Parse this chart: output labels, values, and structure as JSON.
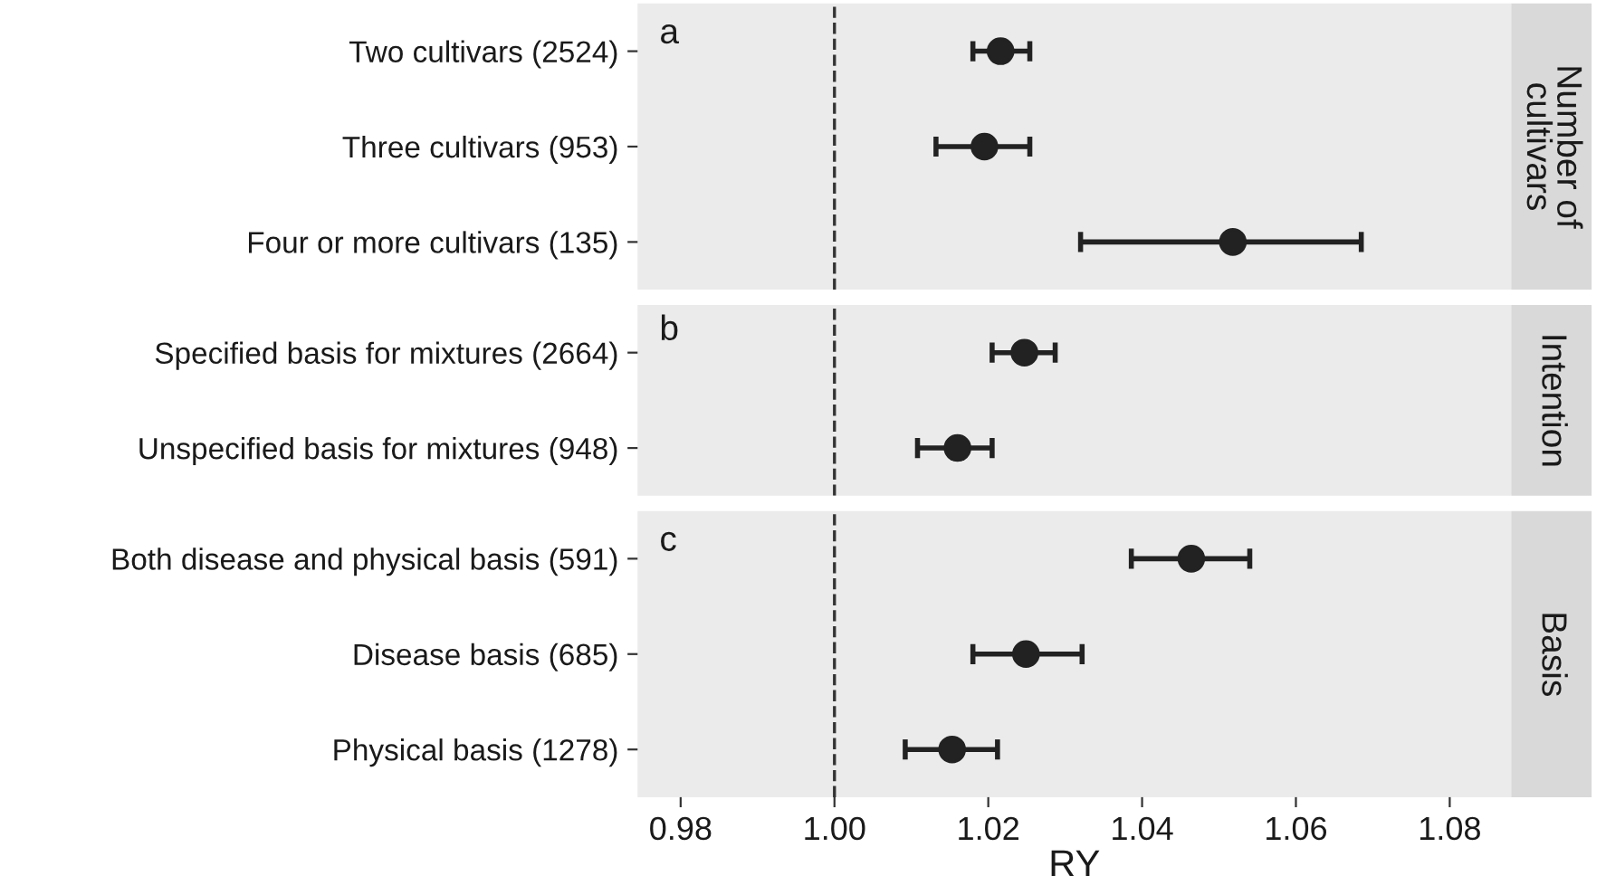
{
  "chart_data": [
    {
      "type": "scatter",
      "orientation": "horizontal",
      "categories": [
        "Two cultivars (2524)",
        "Three cultivars (953)",
        "Four or more cultivars (135)"
      ],
      "values": [
        1.0216,
        1.0195,
        1.0518
      ],
      "errors": [
        [
          1.018,
          1.0254
        ],
        [
          1.0132,
          1.0254
        ],
        [
          1.032,
          1.0685
        ]
      ],
      "color": "#222222",
      "marker": "circle",
      "xlim": [
        0.9744,
        1.088
      ],
      "tick_labels": "y",
      "grid": false,
      "y2label": "Number of\ncultivars",
      "annotations": [
        "a"
      ],
      "ref_lines": [
        {
          "axis": "x",
          "value": 1.0,
          "line_style": "dashed",
          "color": "#333333"
        }
      ]
    },
    {
      "type": "scatter",
      "orientation": "horizontal",
      "categories": [
        "Specified basis for mixtures (2664)",
        "Unspecified basis for mixtures (948)"
      ],
      "values": [
        1.0247,
        1.016
      ],
      "errors": [
        [
          1.0205,
          1.0287
        ],
        [
          1.0108,
          1.0205
        ]
      ],
      "color": "#222222",
      "marker": "circle",
      "xlim": [
        0.9744,
        1.088
      ],
      "tick_labels": "y",
      "grid": false,
      "y2label": "Intention",
      "annotations": [
        "b"
      ],
      "ref_lines": [
        {
          "axis": "x",
          "value": 1.0,
          "line_style": "dashed",
          "color": "#333333"
        }
      ]
    },
    {
      "type": "scatter",
      "orientation": "horizontal",
      "categories": [
        "Both disease and physical basis (591)",
        "Disease basis (685)",
        "Physical basis (1278)"
      ],
      "values": [
        1.0464,
        1.0249,
        1.0153
      ],
      "errors": [
        [
          1.0386,
          1.054
        ],
        [
          1.018,
          1.0322
        ],
        [
          1.0092,
          1.0212
        ]
      ],
      "color": "#222222",
      "marker": "circle",
      "xlim": [
        0.9744,
        1.088
      ],
      "xticks": [
        {
          "value": 0.98,
          "label": "0.98"
        },
        {
          "value": 1.0,
          "label": "1.00"
        },
        {
          "value": 1.02,
          "label": "1.02"
        },
        {
          "value": 1.04,
          "label": "1.04"
        },
        {
          "value": 1.06,
          "label": "1.06"
        },
        {
          "value": 1.08,
          "label": "1.08"
        }
      ],
      "xlabel": "RY",
      "grid": false,
      "y2label": "Basis",
      "annotations": [
        "c"
      ],
      "ref_lines": [
        {
          "axis": "x",
          "value": 1.0,
          "line_style": "dashed",
          "color": "#333333"
        }
      ]
    }
  ]
}
